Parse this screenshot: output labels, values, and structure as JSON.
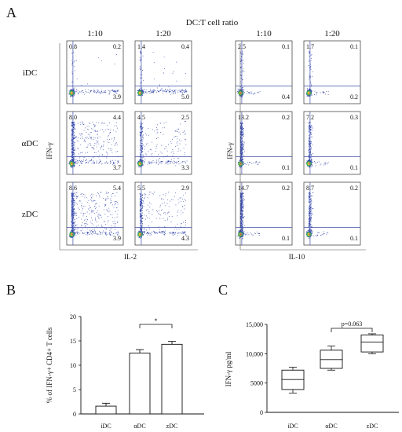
{
  "panel_a": {
    "letter": "A",
    "header": "DC:T cell ratio",
    "ratios": [
      "1:10",
      "1:20",
      "1:10",
      "1:20"
    ],
    "row_labels": [
      "iDC",
      "αDC",
      "zDC"
    ],
    "left_group": {
      "y_label": "IFN-γ",
      "x_label": "IL-2"
    },
    "right_group": {
      "y_label": "IFN-γ",
      "x_label": "IL-10"
    },
    "quadrants": [
      [
        {
          "ul": "0.8",
          "ur": "0.2",
          "lr": "3.9"
        },
        {
          "ul": "1.4",
          "ur": "0.4",
          "lr": "5.0"
        },
        {
          "ul": "2.5",
          "ur": "0.1",
          "lr": "0.4"
        },
        {
          "ul": "1.7",
          "ur": "0.1",
          "lr": "0.2"
        }
      ],
      [
        {
          "ul": "8.0",
          "ur": "4.4",
          "lr": "3.7"
        },
        {
          "ul": "4.5",
          "ur": "2.5",
          "lr": "3.3"
        },
        {
          "ul": "13.2",
          "ur": "0.2",
          "lr": "0.1"
        },
        {
          "ul": "7.2",
          "ur": "0.3",
          "lr": "0.1"
        }
      ],
      [
        {
          "ul": "8.6",
          "ur": "5.4",
          "lr": "3.9"
        },
        {
          "ul": "5.5",
          "ur": "2.9",
          "lr": "4.3"
        },
        {
          "ul": "14.7",
          "ur": "0.2",
          "lr": "0.1"
        },
        {
          "ul": "8.7",
          "ur": "0.2",
          "lr": "0.1"
        }
      ]
    ]
  },
  "chart_data": [
    {
      "type": "bar",
      "panel": "B",
      "categories": [
        "iDC",
        "αDC",
        "zDC"
      ],
      "values": [
        1.6,
        12.5,
        14.3
      ],
      "error": [
        0.6,
        0.7,
        0.6
      ],
      "ylabel": "% of IFN-γ+ CD4+ T cells",
      "ylim": [
        0,
        20
      ],
      "yticks": [
        "0",
        "5",
        "10",
        "15",
        "20"
      ],
      "significance": {
        "between": [
          "αDC",
          "zDC"
        ],
        "label": "*"
      }
    },
    {
      "type": "box",
      "panel": "C",
      "categories": [
        "iDC",
        "αDC",
        "zDC"
      ],
      "boxes": [
        {
          "min": 3300,
          "q1": 3900,
          "median": 5600,
          "q3": 7200,
          "max": 7700
        },
        {
          "min": 7200,
          "q1": 7500,
          "median": 9000,
          "q3": 10600,
          "max": 11300
        },
        {
          "min": 10000,
          "q1": 10300,
          "median": 12000,
          "q3": 13200,
          "max": 13400
        }
      ],
      "ylabel": "IFN-γ pg/ml",
      "ylim": [
        0,
        15000
      ],
      "yticks": [
        "0",
        "5000",
        "10,000",
        "15,000"
      ],
      "significance": {
        "between": [
          "αDC",
          "zDC"
        ],
        "label": "p=0.063"
      }
    }
  ]
}
